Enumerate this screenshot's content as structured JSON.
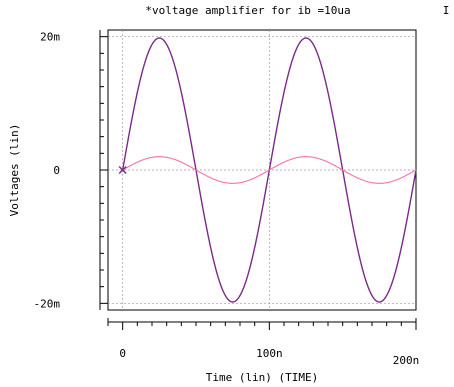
{
  "chart_data": {
    "type": "line",
    "title": "*voltage amplifier for ib =10ua",
    "edge_text": "I",
    "xlabel": "Time (lin) (TIME)",
    "ylabel": "Voltages (lin)",
    "xlim": [
      -10,
      200
    ],
    "ylim": [
      -0.021,
      0.021
    ],
    "xticks": [
      {
        "value": 0,
        "label": "0"
      },
      {
        "value": 100,
        "label": "100n"
      },
      {
        "value": 200,
        "label": "200n"
      }
    ],
    "yticks": [
      {
        "value": 0.02,
        "label": "20m"
      },
      {
        "value": 0,
        "label": "0"
      },
      {
        "value": -0.02,
        "label": "-20m"
      }
    ],
    "grid": true,
    "start_marker": {
      "x": 0,
      "y": 0,
      "symbol": "x"
    },
    "series": [
      {
        "color": "#7a2a8a",
        "x": [
          0,
          12.5,
          25,
          37.5,
          50,
          62.5,
          75,
          87.5,
          100,
          112.5,
          125,
          137.5,
          150,
          162.5,
          175,
          187.5,
          200
        ],
        "values": [
          0,
          0.0141,
          0.0198,
          0.0141,
          0,
          -0.0141,
          -0.0198,
          -0.0141,
          0,
          0.0141,
          0.0198,
          0.0141,
          0,
          -0.0141,
          -0.0198,
          -0.0141,
          0
        ]
      },
      {
        "color": "#ff6fa6",
        "x": [
          0,
          12.5,
          25,
          37.5,
          50,
          62.5,
          75,
          87.5,
          100,
          112.5,
          125,
          137.5,
          150,
          162.5,
          175,
          187.5,
          200
        ],
        "values": [
          0,
          0.0014,
          0.002,
          0.0014,
          0,
          -0.0014,
          -0.002,
          -0.0014,
          0,
          0.0014,
          0.002,
          0.0014,
          0,
          -0.0014,
          -0.002,
          -0.0014,
          0
        ]
      }
    ]
  }
}
